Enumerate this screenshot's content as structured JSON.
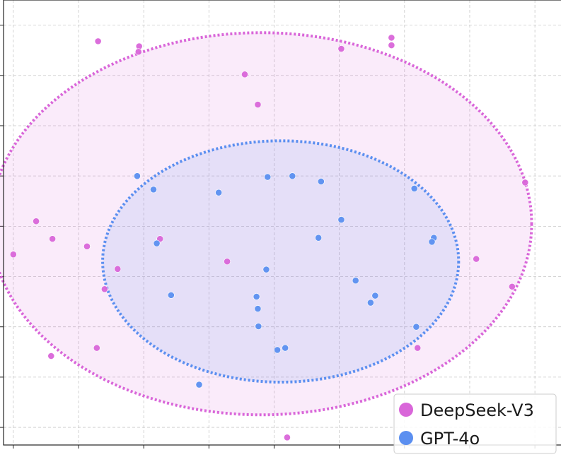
{
  "chart_data": {
    "type": "scatter",
    "grid": true,
    "legend_placement": "bottom-right",
    "xlim": [
      0.25,
      8.8
    ],
    "ylim": [
      -0.15,
      8.7
    ],
    "series": [
      {
        "name": "DeepSeek-V3",
        "color": "#d966d9",
        "ellipse": {
          "cx": 4.2,
          "cy": 4.25,
          "rx": 4.15,
          "ry": 3.8
        },
        "points": [
          {
            "x": 1.7,
            "y": 7.88
          },
          {
            "x": 2.33,
            "y": 7.78
          },
          {
            "x": 2.32,
            "y": 7.67
          },
          {
            "x": 5.43,
            "y": 7.73
          },
          {
            "x": 6.2,
            "y": 7.95
          },
          {
            "x": 6.2,
            "y": 7.8
          },
          {
            "x": 3.95,
            "y": 7.22
          },
          {
            "x": 4.15,
            "y": 6.62
          },
          {
            "x": 8.25,
            "y": 5.07
          },
          {
            "x": 0.75,
            "y": 4.3
          },
          {
            "x": 1.0,
            "y": 3.95
          },
          {
            "x": 1.53,
            "y": 3.8
          },
          {
            "x": 0.4,
            "y": 3.64
          },
          {
            "x": 2.65,
            "y": 3.95
          },
          {
            "x": 3.68,
            "y": 3.5
          },
          {
            "x": 2.0,
            "y": 3.35
          },
          {
            "x": 1.8,
            "y": 2.95
          },
          {
            "x": 7.5,
            "y": 3.55
          },
          {
            "x": 8.05,
            "y": 3.0
          },
          {
            "x": 1.68,
            "y": 1.78
          },
          {
            "x": 0.98,
            "y": 1.62
          },
          {
            "x": 6.6,
            "y": 1.78
          },
          {
            "x": 4.6,
            "y": 0.0
          }
        ]
      },
      {
        "name": "GPT-4o",
        "color": "#5b8ff0",
        "ellipse": {
          "cx": 4.5,
          "cy": 3.5,
          "rx": 2.73,
          "ry": 2.4
        },
        "points": [
          {
            "x": 2.3,
            "y": 5.2
          },
          {
            "x": 4.3,
            "y": 5.18
          },
          {
            "x": 4.68,
            "y": 5.2
          },
          {
            "x": 5.12,
            "y": 5.09
          },
          {
            "x": 2.55,
            "y": 4.93
          },
          {
            "x": 3.55,
            "y": 4.87
          },
          {
            "x": 6.55,
            "y": 4.95
          },
          {
            "x": 5.43,
            "y": 4.33
          },
          {
            "x": 5.08,
            "y": 3.97
          },
          {
            "x": 6.85,
            "y": 3.97
          },
          {
            "x": 6.82,
            "y": 3.89
          },
          {
            "x": 2.6,
            "y": 3.86
          },
          {
            "x": 4.28,
            "y": 3.34
          },
          {
            "x": 5.65,
            "y": 3.12
          },
          {
            "x": 2.82,
            "y": 2.83
          },
          {
            "x": 4.13,
            "y": 2.8
          },
          {
            "x": 5.95,
            "y": 2.82
          },
          {
            "x": 5.88,
            "y": 2.68
          },
          {
            "x": 4.15,
            "y": 2.56
          },
          {
            "x": 4.16,
            "y": 2.21
          },
          {
            "x": 6.58,
            "y": 2.2
          },
          {
            "x": 4.57,
            "y": 1.78
          },
          {
            "x": 4.45,
            "y": 1.74
          },
          {
            "x": 3.25,
            "y": 1.05
          }
        ]
      }
    ]
  }
}
